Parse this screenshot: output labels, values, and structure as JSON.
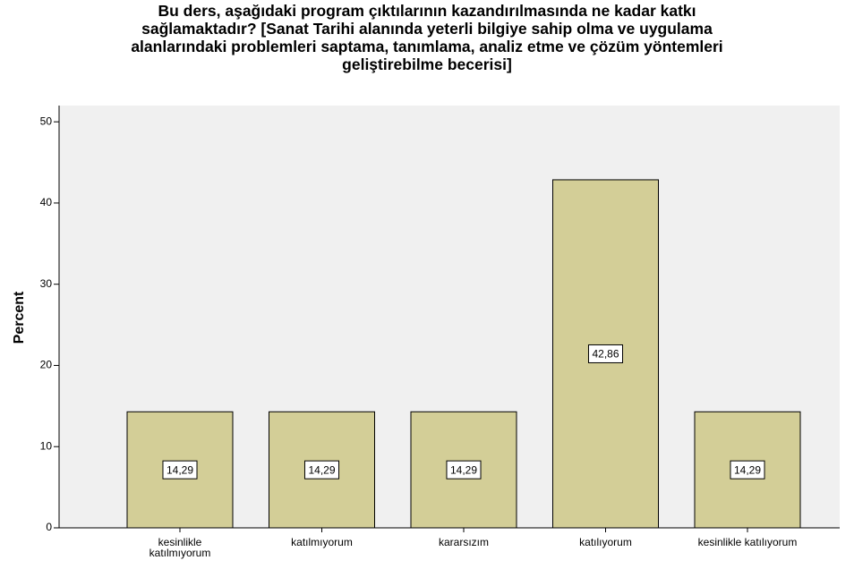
{
  "chart_data": {
    "type": "bar",
    "title": "Bu ders, aşağıdaki program çıktılarının kazandırılmasında ne kadar katkı\nsağlamaktadır? [Sanat Tarihi alanında yeterli bilgiye sahip olma ve uygulama\nalanlarındaki problemleri saptama, tanımlama, analiz etme ve çözüm yöntemleri\ngeliştirebilme becerisi]",
    "y_label": "Percent",
    "categories": [
      "kesinlikle katılmıyorum",
      "katılmıyorum",
      "kararsızım",
      "katılıyorum",
      "kesinlikle katılıyorum"
    ],
    "values": [
      14.29,
      14.29,
      14.29,
      42.86,
      14.29
    ],
    "value_labels": [
      "14,29",
      "14,29",
      "14,29",
      "42,86",
      "14,29"
    ],
    "color": "#d3ce97",
    "ylim": [
      0,
      52
    ],
    "yticks": [
      0,
      10,
      20,
      30,
      40,
      50
    ]
  }
}
